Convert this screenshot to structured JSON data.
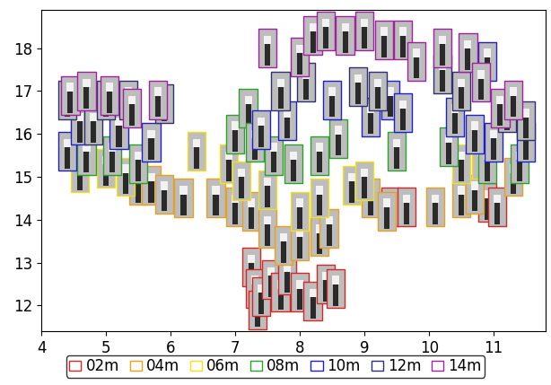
{
  "chart_data": {
    "type": "scatter",
    "marker": "square",
    "legend": "lower center",
    "xlim": [
      4.0,
      11.8
    ],
    "xticks": [
      4,
      5,
      6,
      7,
      8,
      9,
      10,
      11
    ],
    "ylim": [
      11.4,
      18.9
    ],
    "yticks": [
      12,
      13,
      14,
      15,
      16,
      17,
      18
    ],
    "series": [
      {
        "name": "02m",
        "color": "#d62728",
        "x": [
          7.25,
          7.3,
          7.35,
          7.4,
          7.55,
          7.7,
          7.8,
          8.0,
          8.2,
          8.4,
          8.55,
          9.4,
          9.65,
          10.9,
          11.05
        ],
        "y": [
          12.9,
          12.4,
          11.9,
          12.2,
          12.6,
          12.3,
          12.7,
          12.3,
          12.1,
          12.5,
          12.4,
          14.3,
          14.3,
          14.4,
          14.3
        ]
      },
      {
        "name": "04m",
        "color": "#e8a020",
        "x": [
          5.5,
          5.7,
          5.9,
          6.2,
          6.7,
          7.0,
          7.25,
          7.5,
          7.75,
          8.0,
          8.3,
          8.45,
          9.1,
          9.35,
          10.1,
          10.5,
          10.7,
          11.3
        ],
        "y": [
          14.8,
          14.8,
          14.6,
          14.5,
          14.5,
          14.3,
          14.2,
          13.8,
          13.4,
          13.5,
          13.6,
          13.8,
          14.5,
          14.2,
          14.3,
          14.5,
          14.6,
          15.0
        ]
      },
      {
        "name": "06m",
        "color": "#f0e020",
        "x": [
          4.6,
          5.0,
          5.3,
          6.4,
          6.9,
          7.1,
          7.5,
          8.0,
          8.3,
          8.8,
          9.0,
          10.5,
          10.8
        ],
        "y": [
          15.1,
          15.2,
          15.0,
          15.6,
          15.3,
          14.9,
          14.7,
          14.2,
          14.5,
          14.8,
          14.9,
          15.3,
          15.4
        ]
      },
      {
        "name": "08m",
        "color": "#2ca02c",
        "x": [
          4.7,
          5.1,
          5.5,
          7.0,
          7.2,
          7.3,
          7.6,
          7.9,
          8.3,
          8.6,
          9.5,
          10.3,
          10.9,
          11.4
        ],
        "y": [
          15.5,
          15.5,
          15.3,
          16.0,
          16.6,
          15.8,
          15.5,
          15.3,
          15.5,
          15.9,
          15.6,
          15.7,
          15.3,
          15.3
        ]
      },
      {
        "name": "10m",
        "color": "#1f1fd0",
        "x": [
          4.4,
          4.6,
          5.2,
          5.7,
          7.4,
          7.8,
          8.5,
          9.1,
          9.4,
          9.6,
          10.4,
          10.7,
          10.9,
          11.0,
          11.5
        ],
        "y": [
          15.6,
          16.2,
          16.1,
          15.8,
          16.1,
          16.3,
          16.8,
          16.4,
          16.8,
          16.5,
          16.4,
          16.0,
          17.7,
          15.8,
          15.8
        ]
      },
      {
        "name": "12m",
        "color": "#303070",
        "x": [
          4.4,
          4.8,
          5.0,
          5.35,
          5.9,
          7.7,
          8.1,
          8.9,
          9.2,
          10.2,
          10.5,
          11.2,
          11.5
        ],
        "y": [
          16.8,
          16.2,
          16.8,
          16.8,
          16.7,
          17.0,
          17.2,
          17.1,
          17.0,
          17.4,
          17.0,
          16.5,
          16.3
        ]
      },
      {
        "name": "14m",
        "color": "#a020a0",
        "x": [
          4.45,
          4.7,
          5.05,
          5.4,
          5.8,
          7.5,
          8.0,
          8.2,
          8.4,
          8.7,
          9.0,
          9.3,
          9.6,
          9.8,
          10.2,
          10.6,
          10.8,
          11.1,
          11.3
        ],
        "y": [
          16.9,
          17.0,
          16.9,
          16.6,
          16.8,
          18.0,
          17.8,
          18.3,
          18.4,
          18.3,
          18.4,
          18.2,
          18.2,
          17.7,
          18.0,
          17.9,
          17.2,
          16.6,
          16.8
        ]
      }
    ]
  }
}
